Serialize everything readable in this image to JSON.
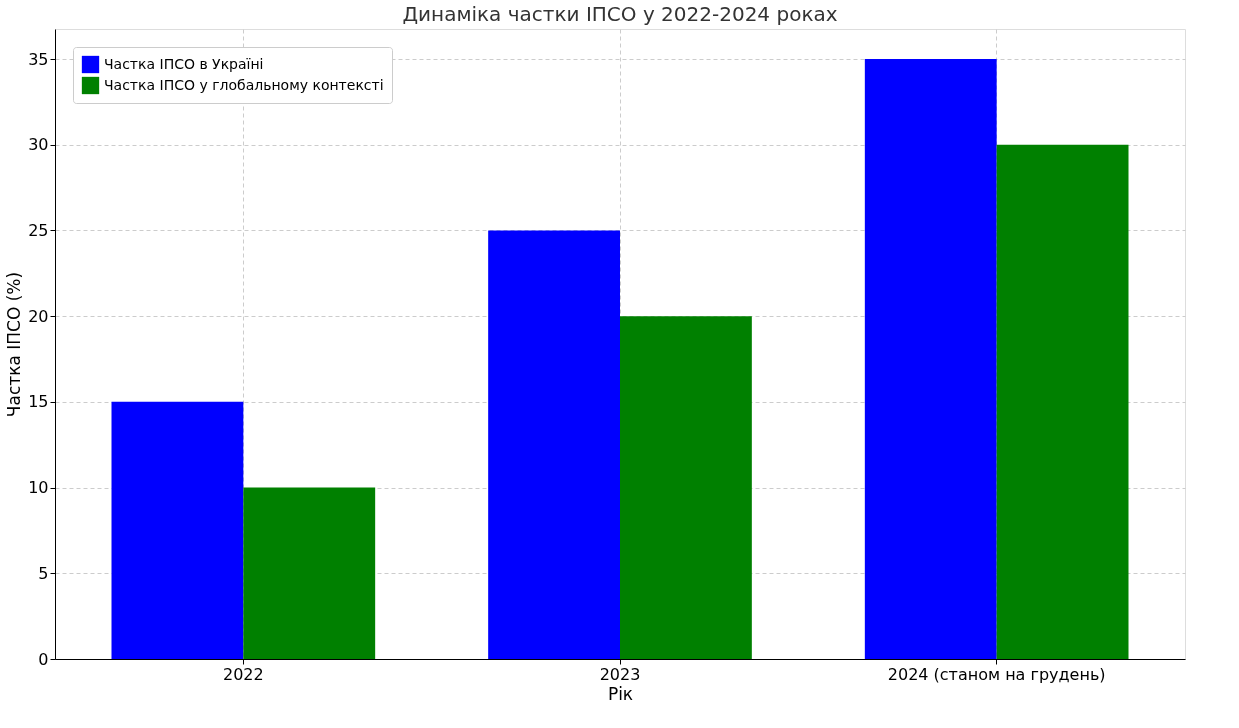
{
  "chart_data": {
    "type": "bar",
    "title": "Динаміка частки ІПСО у 2022-2024 роках",
    "xlabel": "Рік",
    "ylabel": "Частка ІПСО (%)",
    "categories": [
      "2022",
      "2023",
      "2024 (станом на грудень)"
    ],
    "series": [
      {
        "name": "Частка ІПСО в Україні",
        "color": "#0000ff",
        "values": [
          15,
          25,
          35
        ]
      },
      {
        "name": "Частка ІПСО у глобальному контексті",
        "color": "#008000",
        "values": [
          10,
          20,
          30
        ]
      }
    ],
    "ylim": [
      0,
      36.75
    ],
    "yticks": [
      0,
      5,
      10,
      15,
      20,
      25,
      30,
      35
    ],
    "grid": true,
    "legend": "top left"
  }
}
